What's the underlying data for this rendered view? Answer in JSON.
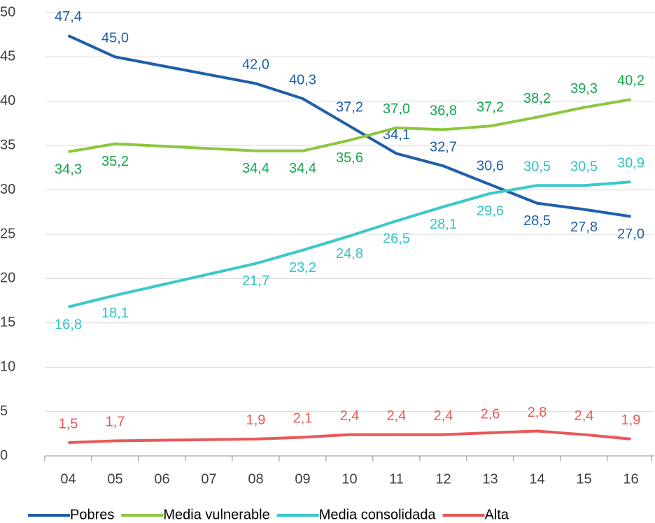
{
  "chart_data": {
    "type": "line",
    "x": [
      4,
      5,
      8,
      9,
      10,
      11,
      12,
      13,
      14,
      15,
      16
    ],
    "xlim": [
      3.5,
      16.5
    ],
    "xticks": [
      {
        "value": 4,
        "label": "04"
      },
      {
        "value": 5,
        "label": "05"
      },
      {
        "value": 6,
        "label": "06"
      },
      {
        "value": 7,
        "label": "07"
      },
      {
        "value": 8,
        "label": "08"
      },
      {
        "value": 9,
        "label": "09"
      },
      10,
      11,
      12,
      13,
      14,
      15,
      16
    ],
    "ylim": [
      0,
      50
    ],
    "yticks": [
      0,
      5,
      10,
      15,
      20,
      25,
      30,
      35,
      40,
      45,
      50
    ],
    "grid": true,
    "legend": "bottom",
    "series": [
      {
        "name": "Pobres",
        "color": "#1f5fa8",
        "label_color": "#1f5fa8",
        "values": [
          47.4,
          45.0,
          42.0,
          40.3,
          37.2,
          34.1,
          32.7,
          30.6,
          28.5,
          27.8,
          27.0
        ],
        "value_labels": [
          "47,4",
          "45,0",
          "42,0",
          "40,3",
          "37,2",
          "34,1",
          "32,7",
          "30,6",
          "28,5",
          "27,8",
          "27,0"
        ]
      },
      {
        "name": "Media vulnerable",
        "color": "#8dc63f",
        "label_color": "#14a44d",
        "values": [
          34.3,
          35.2,
          34.4,
          34.4,
          35.6,
          37.0,
          36.8,
          37.2,
          38.2,
          39.3,
          40.2
        ],
        "value_labels": [
          "34,3",
          "35,2",
          "34,4",
          "34,4",
          "35,6",
          "37,0",
          "36,8",
          "37,2",
          "38,2",
          "39,3",
          "40,2"
        ]
      },
      {
        "name": "Media consolidada",
        "color": "#3cc8c8",
        "label_color": "#2ec4c4",
        "values": [
          16.8,
          18.1,
          21.7,
          23.2,
          24.8,
          26.5,
          28.1,
          29.6,
          30.5,
          30.5,
          30.9
        ],
        "value_labels": [
          "16,8",
          "18,1",
          "21,7",
          "23,2",
          "24,8",
          "26,5",
          "28,1",
          "29,6",
          "30,5",
          "30,5",
          "30,9"
        ]
      },
      {
        "name": "Alta",
        "color": "#e8585a",
        "label_color": "#e8585a",
        "values": [
          1.5,
          1.7,
          1.9,
          2.1,
          2.4,
          2.4,
          2.4,
          2.6,
          2.8,
          2.4,
          1.9
        ],
        "value_labels": [
          "1,5",
          "1,7",
          "1,9",
          "2,1",
          "2,4",
          "2,4",
          "2,4",
          "2,6",
          "2,8",
          "2,4",
          "1,9"
        ]
      }
    ]
  }
}
